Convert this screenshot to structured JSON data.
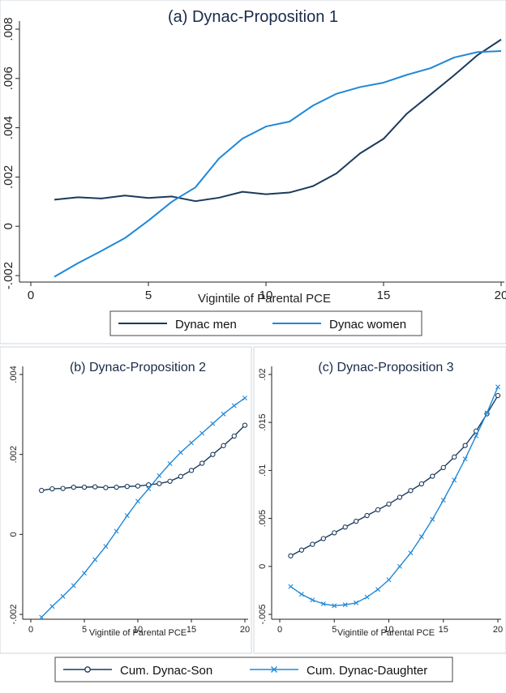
{
  "chart_data": [
    {
      "type": "line",
      "title": "(a) Dynac-Proposition 1",
      "xlabel": "Vigintile of Parental PCE",
      "ylabel": "",
      "xlim": [
        0,
        20
      ],
      "ylim": [
        -0.002,
        0.008
      ],
      "xticks": [
        0,
        5,
        10,
        15,
        20
      ],
      "xtick_labels": [
        "0",
        "5",
        "10",
        "15",
        "20"
      ],
      "yticks": [
        -0.002,
        0,
        0.002,
        0.004,
        0.006,
        0.008
      ],
      "ytick_labels": [
        "-.002",
        "0",
        ".002",
        ".004",
        ".006",
        ".008"
      ],
      "x": [
        1,
        2,
        3,
        4,
        5,
        6,
        7,
        8,
        9,
        10,
        11,
        12,
        13,
        14,
        15,
        16,
        17,
        18,
        19,
        20
      ],
      "series": [
        {
          "name": "Dynac men",
          "color": "#1a3a5c",
          "marker": "none",
          "values": [
            0.00108,
            0.00118,
            0.00113,
            0.00125,
            0.00115,
            0.00121,
            0.00102,
            0.00116,
            0.0014,
            0.0013,
            0.00137,
            0.00163,
            0.00215,
            0.00296,
            0.00355,
            0.00458,
            0.00535,
            0.00613,
            0.00695,
            0.00758
          ]
        },
        {
          "name": "Dynac women",
          "color": "#1e88d8",
          "marker": "none",
          "values": [
            -0.00205,
            -0.0015,
            -0.001,
            -0.00048,
            0.00023,
            0.001,
            0.00158,
            0.00275,
            0.00356,
            0.00405,
            0.00425,
            0.0049,
            0.00538,
            0.00565,
            0.00583,
            0.00615,
            0.00642,
            0.00685,
            0.00707,
            0.00711
          ]
        }
      ],
      "legend": {
        "placement": "bottom",
        "entries": [
          "Dynac men",
          "Dynac women"
        ]
      },
      "grid": false
    },
    {
      "type": "line",
      "title": "(b) Dynac-Proposition 2",
      "xlabel": "Vigintile of Parental PCE",
      "ylabel": "",
      "xlim": [
        0,
        20
      ],
      "ylim": [
        -0.002,
        0.004
      ],
      "xticks": [
        0,
        5,
        10,
        15,
        20
      ],
      "xtick_labels": [
        "0",
        "5",
        "10",
        "15",
        "20"
      ],
      "yticks": [
        -0.002,
        0,
        0.002,
        0.004
      ],
      "ytick_labels": [
        "-.002",
        "0",
        ".002",
        ".004"
      ],
      "x": [
        1,
        2,
        3,
        4,
        5,
        6,
        7,
        8,
        9,
        10,
        11,
        12,
        13,
        14,
        15,
        16,
        17,
        18,
        19,
        20
      ],
      "series": [
        {
          "name": "Cum. Dynac-Son",
          "color": "#1a3a5c",
          "marker": "circle",
          "values": [
            0.0011,
            0.00114,
            0.00115,
            0.00118,
            0.00118,
            0.00119,
            0.00117,
            0.00118,
            0.0012,
            0.00121,
            0.00124,
            0.00127,
            0.00133,
            0.00145,
            0.0016,
            0.00178,
            0.002,
            0.00222,
            0.00246,
            0.00273
          ]
        },
        {
          "name": "Cum. Dynac-Daughter",
          "color": "#1e88d8",
          "marker": "x",
          "values": [
            -0.00207,
            -0.0018,
            -0.00155,
            -0.00128,
            -0.00097,
            -0.00063,
            -0.0003,
            8e-05,
            0.00047,
            0.00083,
            0.00114,
            0.00147,
            0.00177,
            0.00205,
            0.00229,
            0.00253,
            0.00277,
            0.00301,
            0.00322,
            0.00341
          ]
        }
      ],
      "grid": false
    },
    {
      "type": "line",
      "title": "(c) Dynac-Proposition 3",
      "xlabel": "Vigintile of Parental PCE",
      "ylabel": "",
      "xlim": [
        0,
        20
      ],
      "ylim": [
        -0.005,
        0.02
      ],
      "xticks": [
        0,
        5,
        10,
        15,
        20
      ],
      "xtick_labels": [
        "0",
        "5",
        "10",
        "15",
        "20"
      ],
      "yticks": [
        -0.005,
        0,
        0.005,
        0.01,
        0.015,
        0.02
      ],
      "ytick_labels": [
        "-.005",
        "0",
        ".005",
        ".01",
        ".015",
        ".02"
      ],
      "x": [
        1,
        2,
        3,
        4,
        5,
        6,
        7,
        8,
        9,
        10,
        11,
        12,
        13,
        14,
        15,
        16,
        17,
        18,
        19,
        20
      ],
      "series": [
        {
          "name": "Cum. Dynac-Son",
          "color": "#1a3a5c",
          "marker": "circle",
          "values": [
            0.0011,
            0.0017,
            0.0023,
            0.0029,
            0.0035,
            0.0041,
            0.0047,
            0.0053,
            0.0059,
            0.0065,
            0.0072,
            0.0079,
            0.0086,
            0.0094,
            0.0103,
            0.0114,
            0.0126,
            0.0141,
            0.0159,
            0.0178
          ]
        },
        {
          "name": "Cum. Dynac-Daughter",
          "color": "#1e88d8",
          "marker": "x",
          "values": [
            -0.0021,
            -0.0029,
            -0.0035,
            -0.0039,
            -0.0041,
            -0.004,
            -0.0038,
            -0.0032,
            -0.0024,
            -0.0014,
            0.0,
            0.0014,
            0.0031,
            0.0049,
            0.0069,
            0.009,
            0.0112,
            0.0136,
            0.016,
            0.0187
          ]
        }
      ],
      "grid": false
    }
  ],
  "shared_legend": {
    "placement": "bottom",
    "entries": [
      {
        "label": "Cum. Dynac-Son",
        "color": "#1a3a5c",
        "marker": "circle"
      },
      {
        "label": "Cum. Dynac-Daughter",
        "color": "#1e88d8",
        "marker": "x"
      }
    ]
  }
}
